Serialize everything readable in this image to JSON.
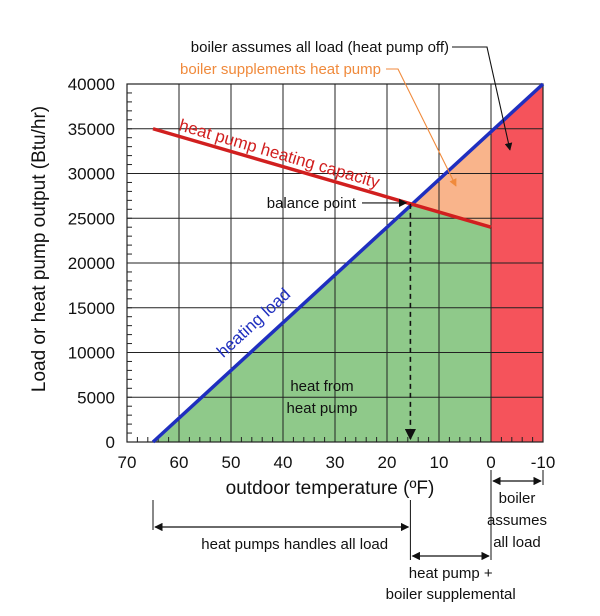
{
  "chart_data": {
    "type": "line",
    "xlabel": "outdoor temperature (ºF)",
    "ylabel": "Load or heat pump output (Btu/hr)",
    "xlim": [
      70,
      -10
    ],
    "ylim": [
      0,
      40000
    ],
    "x_ticks": [
      "70",
      "60",
      "50",
      "40",
      "30",
      "20",
      "10",
      "0",
      "-10"
    ],
    "y_ticks": [
      "0",
      "5000",
      "10000",
      "15000",
      "20000",
      "25000",
      "30000",
      "35000",
      "40000"
    ],
    "grid": true,
    "series": [
      {
        "name": "heating load",
        "color": "#1f2fbf",
        "x": [
          65,
          -10
        ],
        "y": [
          0,
          40000
        ]
      },
      {
        "name": "heat pump heating capacity",
        "color": "#d11f1f",
        "x": [
          65,
          0
        ],
        "y": [
          35000,
          24000
        ]
      }
    ],
    "balance_point": {
      "label": "balance point",
      "x": 15.5,
      "y": 26600
    },
    "regions": {
      "heat_pump": {
        "label_line1": "heat from",
        "label_line2": "heat pump",
        "color": "#8fc98a"
      },
      "supplement": {
        "label": "boiler supplements heat pump",
        "color": "#f9b48b",
        "text_color": "#f08a3c"
      },
      "boiler_only": {
        "label": "boiler assumes all load (heat pump off)",
        "color": "#f5535b"
      }
    },
    "ranges": [
      {
        "label": "heat pumps handles all load",
        "from": 65,
        "to": 15.5
      },
      {
        "label_line1": "heat pump +",
        "label_line2": "boiler supplemental",
        "from": 15.5,
        "to": 0
      },
      {
        "label_line1": "boiler",
        "label_line2": "assumes",
        "label_line3": "all load",
        "from": 0,
        "to": -10
      }
    ]
  }
}
